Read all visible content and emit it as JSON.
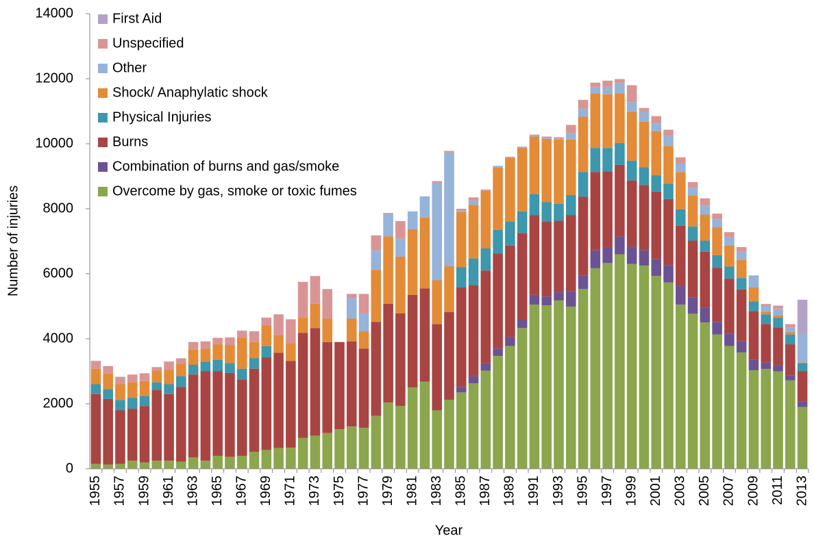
{
  "chart_data": {
    "type": "stacked_bar",
    "xlabel": "Year",
    "ylabel": "Number of injuries",
    "categories": [
      "1955",
      null,
      "1957",
      null,
      "1959",
      null,
      "1961",
      null,
      "1963",
      null,
      "1965",
      null,
      "1967",
      null,
      "1969",
      null,
      "1971",
      null,
      "1973",
      null,
      "1975",
      null,
      "1977",
      null,
      "1979",
      null,
      "1981",
      null,
      "1983",
      null,
      "1985",
      null,
      "1987",
      null,
      "1989",
      null,
      "1991",
      null,
      "1993",
      null,
      "1995",
      null,
      "1997",
      null,
      "1999",
      null,
      "2001",
      null,
      "2003",
      null,
      "2005",
      null,
      "2007",
      null,
      "2009",
      null,
      "2011",
      null,
      "2013"
    ],
    "ylim": [
      0,
      14000
    ],
    "yticks": [
      0,
      2000,
      4000,
      6000,
      8000,
      10000,
      12000,
      14000
    ],
    "grid": false,
    "legend": "upper left",
    "series": [
      {
        "name": "Overcome by gas, smoke or toxic fumes",
        "color": "#8ba64c",
        "values": [
          150,
          130,
          150,
          250,
          200,
          250,
          250,
          220,
          350,
          250,
          400,
          370,
          400,
          520,
          580,
          640,
          650,
          950,
          1020,
          1100,
          1220,
          1300,
          1260,
          1630,
          2040,
          1930,
          2500,
          2680,
          1800,
          2120,
          2350,
          2630,
          3020,
          3470,
          3780,
          4330,
          5050,
          5030,
          5180,
          4990,
          5530,
          6170,
          6330,
          6600,
          6300,
          6250,
          5930,
          5730,
          5050,
          4770,
          4500,
          4130,
          3780,
          3580,
          3030,
          3070,
          3000,
          2720,
          1900
        ]
      },
      {
        "name": "Combination of burns and gas/smoke",
        "color": "#6b5393",
        "values": [
          0,
          0,
          0,
          0,
          0,
          0,
          0,
          0,
          0,
          0,
          0,
          0,
          0,
          0,
          0,
          0,
          0,
          0,
          0,
          0,
          0,
          0,
          0,
          0,
          0,
          0,
          0,
          0,
          0,
          0,
          170,
          220,
          230,
          230,
          270,
          270,
          300,
          270,
          250,
          480,
          420,
          550,
          490,
          550,
          530,
          470,
          520,
          540,
          570,
          500,
          450,
          390,
          370,
          350,
          320,
          200,
          180,
          160,
          170
        ]
      },
      {
        "name": "Burns",
        "color": "#a84543",
        "values": [
          2150,
          2020,
          1650,
          1600,
          1730,
          2170,
          2050,
          2300,
          2550,
          2750,
          2600,
          2580,
          2350,
          2560,
          2850,
          2930,
          2670,
          3230,
          3310,
          2800,
          2680,
          2620,
          2440,
          2890,
          3040,
          2850,
          2850,
          2870,
          2650,
          2700,
          3060,
          2800,
          2850,
          2920,
          2820,
          2650,
          2450,
          2300,
          2200,
          2330,
          2420,
          2410,
          2330,
          2200,
          2040,
          2010,
          2080,
          2030,
          1860,
          1750,
          1730,
          1660,
          1700,
          1590,
          1500,
          1180,
          1170,
          950,
          930
        ]
      },
      {
        "name": "Physical Injuries",
        "color": "#3d97ad",
        "values": [
          300,
          300,
          320,
          330,
          310,
          240,
          300,
          330,
          300,
          300,
          350,
          300,
          330,
          320,
          340,
          0,
          0,
          0,
          0,
          0,
          0,
          0,
          0,
          0,
          0,
          0,
          0,
          0,
          0,
          0,
          620,
          820,
          680,
          730,
          730,
          670,
          650,
          600,
          520,
          620,
          760,
          740,
          720,
          670,
          610,
          550,
          500,
          470,
          500,
          430,
          340,
          390,
          370,
          350,
          300,
          300,
          300,
          300,
          250
        ]
      },
      {
        "name": "Shock/ Anaphylatic shock",
        "color": "#e38b37",
        "values": [
          480,
          480,
          480,
          480,
          460,
          360,
          450,
          370,
          470,
          400,
          480,
          550,
          950,
          500,
          630,
          550,
          550,
          470,
          750,
          720,
          0,
          700,
          530,
          1600,
          2070,
          1750,
          2020,
          2180,
          1350,
          1410,
          1700,
          1650,
          1770,
          1920,
          1970,
          1950,
          1770,
          1950,
          1980,
          1710,
          1700,
          1680,
          1650,
          1530,
          1500,
          1400,
          1350,
          1160,
          1150,
          950,
          800,
          860,
          650,
          550,
          430,
          80,
          70,
          70,
          20
        ]
      },
      {
        "name": "Other",
        "color": "#96b3d9",
        "values": [
          0,
          0,
          0,
          0,
          0,
          0,
          0,
          0,
          0,
          0,
          0,
          0,
          0,
          0,
          0,
          0,
          0,
          0,
          0,
          0,
          0,
          630,
          550,
          600,
          680,
          550,
          550,
          650,
          3000,
          3500,
          50,
          130,
          0,
          50,
          30,
          40,
          30,
          30,
          20,
          190,
          250,
          200,
          230,
          320,
          300,
          300,
          250,
          320,
          270,
          250,
          280,
          250,
          250,
          260,
          370,
          170,
          200,
          150,
          910
        ]
      },
      {
        "name": "Unspecified",
        "color": "#d99595",
        "values": [
          240,
          230,
          230,
          240,
          240,
          110,
          250,
          180,
          230,
          220,
          200,
          240,
          220,
          330,
          250,
          630,
          730,
          1100,
          850,
          910,
          0,
          130,
          600,
          460,
          40,
          540,
          0,
          0,
          50,
          50,
          50,
          100,
          40,
          0,
          0,
          0,
          30,
          40,
          50,
          260,
          270,
          130,
          190,
          120,
          520,
          120,
          220,
          180,
          180,
          170,
          220,
          170,
          160,
          140,
          0,
          70,
          100,
          100,
          20
        ]
      },
      {
        "name": "First Aid",
        "color": "#b2a2c7",
        "values": [
          0,
          0,
          0,
          0,
          0,
          0,
          0,
          0,
          0,
          0,
          0,
          0,
          0,
          0,
          0,
          0,
          0,
          0,
          0,
          0,
          0,
          0,
          0,
          0,
          0,
          0,
          0,
          0,
          0,
          0,
          0,
          0,
          0,
          0,
          0,
          0,
          0,
          0,
          0,
          0,
          0,
          0,
          0,
          0,
          0,
          0,
          0,
          0,
          0,
          0,
          0,
          0,
          0,
          0,
          0,
          0,
          0,
          0,
          1000
        ]
      }
    ]
  }
}
